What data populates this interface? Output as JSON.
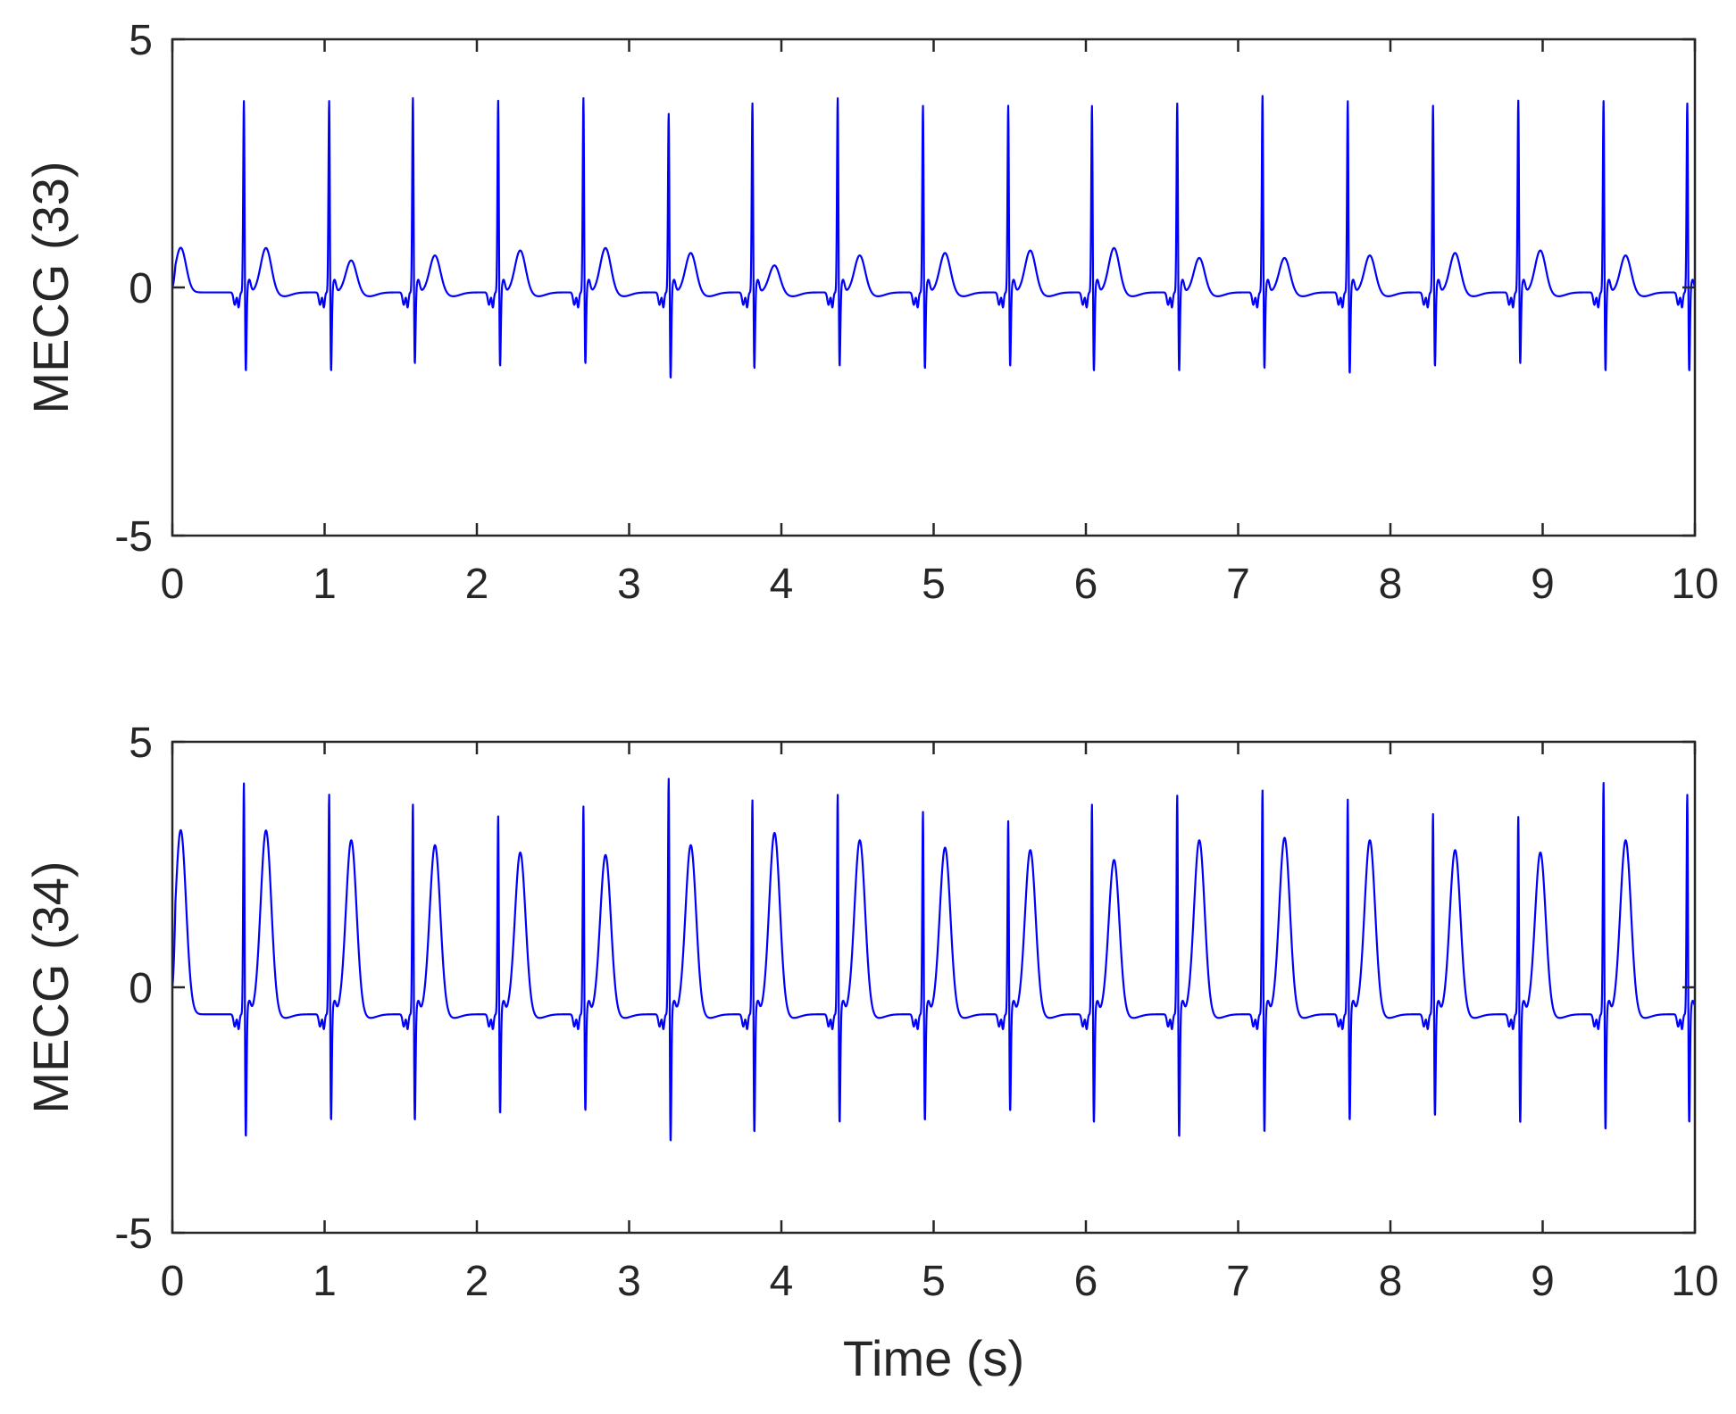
{
  "chart_data": [
    {
      "type": "line",
      "ylabel": "MECG (33)",
      "xlabel": "",
      "xlim": [
        0,
        10
      ],
      "ylim": [
        -5,
        5
      ],
      "xticks": [
        "0",
        "1",
        "2",
        "3",
        "4",
        "5",
        "6",
        "7",
        "8",
        "9",
        "10"
      ],
      "yticks": [
        "5",
        "0",
        "-5"
      ],
      "grid": false,
      "color": "#0000ff",
      "beat_times": [
        0.47,
        1.03,
        1.58,
        2.14,
        2.7,
        3.26,
        3.81,
        4.37,
        4.93,
        5.49,
        6.04,
        6.6,
        7.16,
        7.72,
        8.28,
        8.84,
        9.4,
        9.95
      ],
      "r_peaks": [
        3.85,
        3.85,
        3.9,
        3.85,
        3.9,
        3.6,
        3.8,
        3.9,
        3.75,
        3.75,
        3.75,
        3.8,
        3.95,
        3.85,
        3.75,
        3.85,
        3.85,
        3.8
      ],
      "s_troughs": [
        -1.8,
        -1.8,
        -1.65,
        -1.7,
        -1.65,
        -1.95,
        -1.75,
        -1.7,
        -1.75,
        -1.7,
        -1.8,
        -1.8,
        -1.75,
        -1.85,
        -1.7,
        -1.65,
        -1.8,
        -1.8
      ],
      "t_peaks": [
        0.8,
        0.55,
        0.65,
        0.75,
        0.8,
        0.7,
        0.45,
        0.65,
        0.7,
        0.75,
        0.8,
        0.6,
        0.6,
        0.65,
        0.7,
        0.75,
        0.65,
        0.6
      ],
      "baseline": -0.1
    },
    {
      "type": "line",
      "ylabel": "MECG (34)",
      "xlabel": "Time (s)",
      "xlim": [
        0,
        10
      ],
      "ylim": [
        -5,
        5
      ],
      "xticks": [
        "0",
        "1",
        "2",
        "3",
        "4",
        "5",
        "6",
        "7",
        "8",
        "9",
        "10"
      ],
      "yticks": [
        "5",
        "0",
        "-5"
      ],
      "grid": false,
      "color": "#0000ff",
      "beat_times": [
        0.47,
        1.03,
        1.58,
        2.14,
        2.7,
        3.26,
        3.81,
        4.37,
        4.93,
        5.49,
        6.04,
        6.6,
        7.16,
        7.72,
        8.28,
        8.84,
        9.4,
        9.95
      ],
      "r_peaks": [
        4.3,
        4.05,
        3.85,
        3.6,
        3.8,
        4.4,
        3.95,
        4.05,
        3.7,
        3.5,
        3.85,
        4.05,
        4.15,
        3.95,
        3.65,
        3.6,
        4.3,
        4.05
      ],
      "s_troughs": [
        -3.2,
        -2.85,
        -2.85,
        -2.7,
        -2.65,
        -3.3,
        -3.1,
        -2.9,
        -2.85,
        -2.65,
        -2.9,
        -3.2,
        -3.1,
        -2.85,
        -2.75,
        -2.9,
        -3.05,
        -2.9
      ],
      "t_peaks": [
        3.2,
        3.0,
        2.9,
        2.75,
        2.7,
        2.9,
        3.15,
        3.0,
        2.85,
        2.8,
        2.6,
        3.0,
        3.05,
        3.0,
        2.8,
        2.75,
        3.0,
        3.05
      ],
      "baseline": -0.55
    }
  ]
}
